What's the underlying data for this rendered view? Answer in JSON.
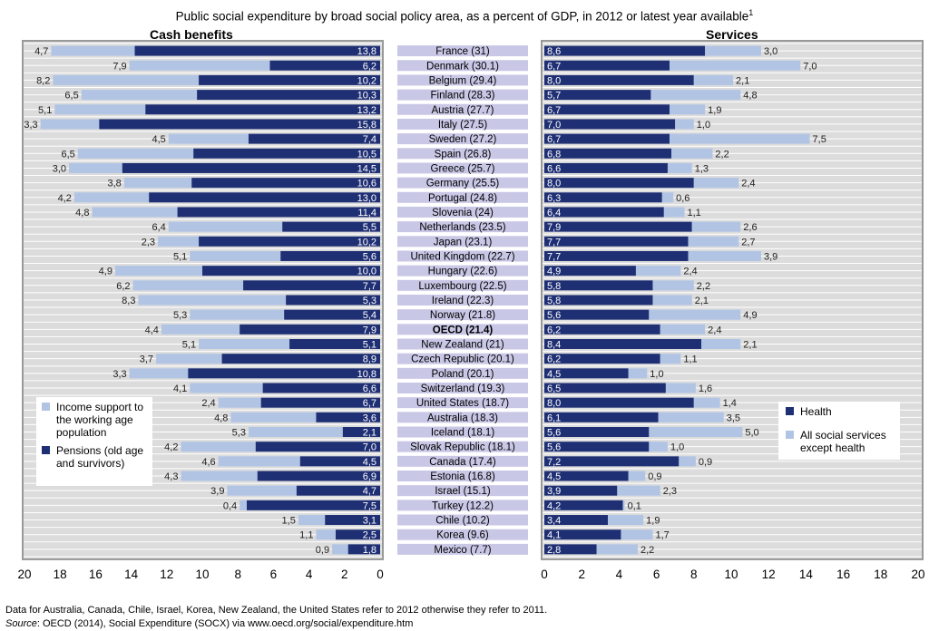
{
  "title": "Public social expenditure by broad social policy area, as a percent of GDP, in 2012 or latest year available",
  "title_sup": "1",
  "colors": {
    "dark": "#1f2f74",
    "light": "#b2c4e4",
    "band": "#c9c7e6",
    "frame_bg": "#dcdcdc",
    "frame_line": "#ffffff",
    "border": "#999999"
  },
  "chart_data": [
    {
      "type": "bar",
      "panel": "Cash benefits",
      "orientation": "horizontal",
      "stacked": true,
      "direction": "right-to-left",
      "xlim": [
        20,
        0
      ],
      "xticks": [
        "20",
        "18",
        "16",
        "14",
        "12",
        "10",
        "8",
        "6",
        "4",
        "2",
        "0"
      ],
      "categories": [
        "France (31)",
        "Denmark (30.1)",
        "Belgium (29.4)",
        "Finland (28.3)",
        "Austria (27.7)",
        "Italy (27.5)",
        "Sweden (27.2)",
        "Spain (26.8)",
        "Greece (25.7)",
        "Germany (25.5)",
        "Portugal (24.8)",
        "Slovenia (24)",
        "Netherlands (23.5)",
        "Japan (23.1)",
        "United Kingdom (22.7)",
        "Hungary (22.6)",
        "Luxembourg (22.5)",
        "Ireland (22.3)",
        "Norway (21.8)",
        "OECD (21.4)",
        "New Zealand (21)",
        "Czech Republic (20.1)",
        "Poland (20.1)",
        "Switzerland (19.3)",
        "United States (18.7)",
        "Australia (18.3)",
        "Iceland (18.1)",
        "Slovak Republic (18.1)",
        "Canada (17.4)",
        "Estonia (16.8)",
        "Israel (15.1)",
        "Turkey (12.2)",
        "Chile (10.2)",
        "Korea (9.6)",
        "Mexico (7.7)"
      ],
      "highlight": "OECD (21.4)",
      "series": [
        {
          "name": "Pensions (old age and survivors)",
          "color": "dark",
          "values": [
            13.8,
            6.2,
            10.2,
            10.3,
            13.2,
            15.8,
            7.4,
            10.5,
            14.5,
            10.6,
            13.0,
            11.4,
            5.5,
            10.2,
            5.6,
            10.0,
            7.7,
            5.3,
            5.4,
            7.9,
            5.1,
            8.9,
            10.8,
            6.6,
            6.7,
            3.6,
            2.1,
            7.0,
            4.5,
            6.9,
            4.7,
            7.5,
            3.1,
            2.5,
            1.8
          ],
          "labels": [
            "13,8",
            "6,2",
            "10,2",
            "10,3",
            "13,2",
            "15,8",
            "7,4",
            "10,5",
            "14,5",
            "10,6",
            "13,0",
            "11,4",
            "5,5",
            "10,2",
            "5,6",
            "10,0",
            "7,7",
            "5,3",
            "5,4",
            "7,9",
            "5,1",
            "8,9",
            "10,8",
            "6,6",
            "6,7",
            "3,6",
            "2,1",
            "7,0",
            "4,5",
            "6,9",
            "4,7",
            "7,5",
            "3,1",
            "2,5",
            "1,8"
          ]
        },
        {
          "name": "Income support to the working age population",
          "color": "light",
          "values": [
            4.7,
            7.9,
            8.2,
            6.5,
            5.1,
            3.3,
            4.5,
            6.5,
            3.0,
            3.8,
            4.2,
            4.8,
            6.4,
            2.3,
            5.1,
            4.9,
            6.2,
            8.3,
            5.3,
            4.4,
            5.1,
            3.7,
            3.3,
            4.1,
            2.4,
            4.8,
            5.3,
            4.2,
            4.6,
            4.3,
            3.9,
            0.4,
            1.5,
            1.1,
            0.9
          ],
          "labels": [
            "4,7",
            "7,9",
            "8,2",
            "6,5",
            "5,1",
            "3,3",
            "4,5",
            "6,5",
            "3,0",
            "3,8",
            "4,2",
            "4,8",
            "6,4",
            "2,3",
            "5,1",
            "4,9",
            "6,2",
            "8,3",
            "5,3",
            "4,4",
            "5,1",
            "3,7",
            "3,3",
            "4,1",
            "2,4",
            "4,8",
            "5,3",
            "4,2",
            "4,6",
            "4,3",
            "3,9",
            "0,4",
            "1,5",
            "1,1",
            "0,9"
          ]
        }
      ],
      "legend": [
        "Income support to the working age population",
        "Pensions (old age and survivors)"
      ],
      "legend_position": "lower-left"
    },
    {
      "type": "bar",
      "panel": "Services",
      "orientation": "horizontal",
      "stacked": true,
      "xlim": [
        0,
        20
      ],
      "xticks": [
        "0",
        "2",
        "4",
        "6",
        "8",
        "10",
        "12",
        "14",
        "16",
        "18",
        "20"
      ],
      "series": [
        {
          "name": "Health",
          "color": "dark",
          "values": [
            8.6,
            6.7,
            8.0,
            5.7,
            6.7,
            7.0,
            6.7,
            6.8,
            6.6,
            8.0,
            6.3,
            6.4,
            7.9,
            7.7,
            7.7,
            4.9,
            5.8,
            5.8,
            5.6,
            6.2,
            8.4,
            6.2,
            4.5,
            6.5,
            8.0,
            6.1,
            5.6,
            5.6,
            7.2,
            4.5,
            3.9,
            4.2,
            3.4,
            4.1,
            2.8
          ],
          "labels": [
            "8,6",
            "6,7",
            "8,0",
            "5,7",
            "6,7",
            "7,0",
            "6,7",
            "6,8",
            "6,6",
            "8,0",
            "6,3",
            "6,4",
            "7,9",
            "7,7",
            "7,7",
            "4,9",
            "5,8",
            "5,8",
            "5,6",
            "6,2",
            "8,4",
            "6,2",
            "4,5",
            "6,5",
            "8,0",
            "6,1",
            "5,6",
            "5,6",
            "7,2",
            "4,5",
            "3,9",
            "4,2",
            "3,4",
            "4,1",
            "2,8"
          ]
        },
        {
          "name": "All social services except health",
          "color": "light",
          "values": [
            3.0,
            7.0,
            2.1,
            4.8,
            1.9,
            1.0,
            7.5,
            2.2,
            1.3,
            2.4,
            0.6,
            1.1,
            2.6,
            2.7,
            3.9,
            2.4,
            2.2,
            2.1,
            4.9,
            2.4,
            2.1,
            1.1,
            1.0,
            1.6,
            1.4,
            3.5,
            5.0,
            1.0,
            0.9,
            0.9,
            2.3,
            0.1,
            1.9,
            1.7,
            2.2
          ],
          "labels": [
            "3,0",
            "7,0",
            "2,1",
            "4,8",
            "1,9",
            "1,0",
            "7,5",
            "2,2",
            "1,3",
            "2,4",
            "0,6",
            "1,1",
            "2,6",
            "2,7",
            "3,9",
            "2,4",
            "2,2",
            "2,1",
            "4,9",
            "2,4",
            "2,1",
            "1,1",
            "1,0",
            "1,6",
            "1,4",
            "3,5",
            "5,0",
            "1,0",
            "0,9",
            "0,9",
            "2,3",
            "0,1",
            "1,9",
            "1,7",
            "2,2"
          ]
        }
      ],
      "legend": [
        "Health",
        "All social services except health"
      ],
      "legend_position": "lower-right"
    }
  ],
  "footnote": "Data for Australia, Canada, Chile, Israel, Korea, New Zealand, the United States refer to 2012 otherwise they refer to 2011.",
  "source_label": "Source",
  "source_text": ": OECD (2014), Social Expenditure (SOCX)  via www.oecd.org/social/expenditure.htm"
}
